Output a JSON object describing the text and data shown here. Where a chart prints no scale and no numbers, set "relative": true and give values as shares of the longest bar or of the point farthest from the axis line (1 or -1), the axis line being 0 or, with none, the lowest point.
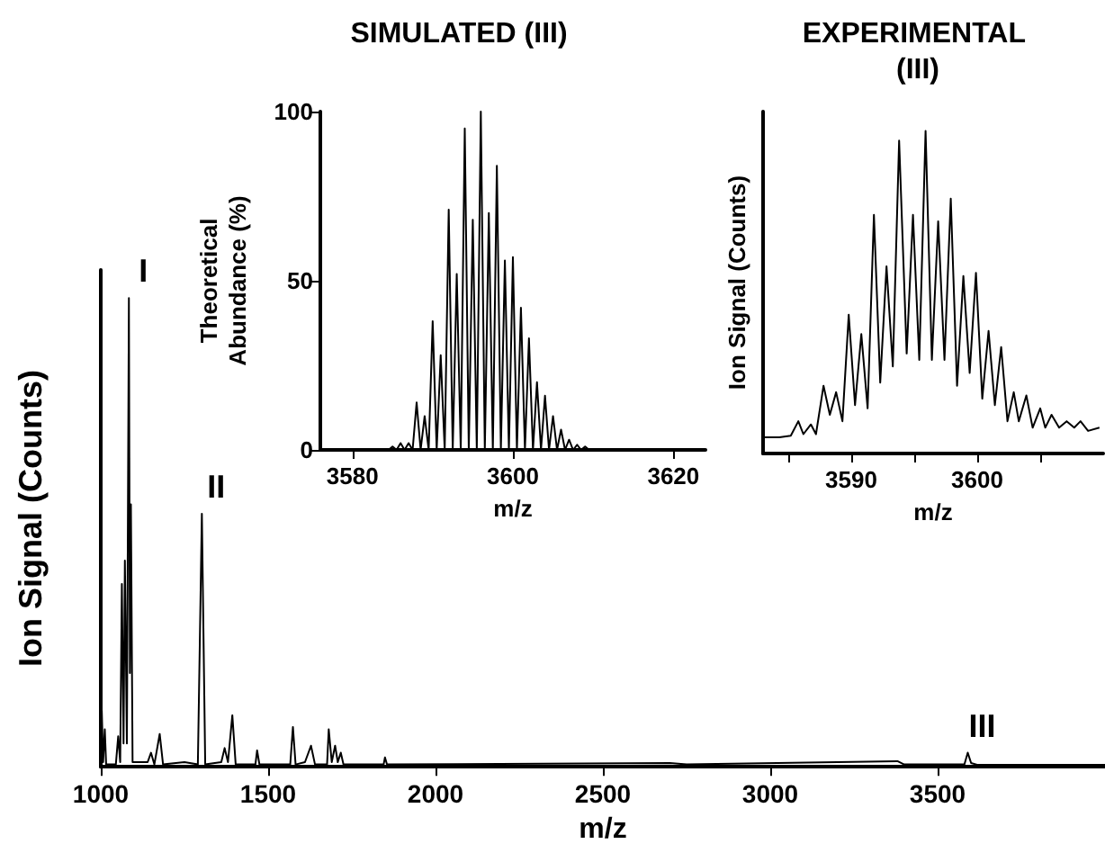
{
  "chart_data": [
    {
      "type": "line",
      "relative": true,
      "xlabel": "m/z",
      "ylabel": "Ion Signal (Counts)",
      "color": "#000000",
      "xlim": [
        1000,
        4000
      ],
      "xticks": [
        1000,
        1500,
        2000,
        2500,
        3000,
        3500
      ],
      "x": [
        1000,
        1003,
        1007,
        1012,
        1016,
        1045,
        1052,
        1058,
        1063,
        1068,
        1072,
        1078,
        1084,
        1087,
        1090,
        1095,
        1140,
        1150,
        1160,
        1176,
        1186,
        1250,
        1290,
        1302,
        1312,
        1360,
        1370,
        1380,
        1393,
        1403,
        1462,
        1467,
        1474,
        1566,
        1574,
        1582,
        1610,
        1628,
        1640,
        1676,
        1681,
        1690,
        1700,
        1708,
        1717,
        1725,
        1845,
        1849,
        1855,
        2700,
        2750,
        3380,
        3400,
        3580,
        3590,
        3600,
        3620,
        4000
      ],
      "values": [
        0.02,
        0.12,
        0.01,
        0.08,
        0.005,
        0.005,
        0.065,
        0.01,
        0.39,
        0.05,
        0.44,
        0.05,
        1.0,
        0.2,
        0.56,
        0.01,
        0.01,
        0.03,
        0.005,
        0.07,
        0.005,
        0.01,
        0.005,
        0.54,
        0.005,
        0.01,
        0.04,
        0.01,
        0.11,
        0.005,
        0.005,
        0.035,
        0.005,
        0.005,
        0.085,
        0.005,
        0.01,
        0.045,
        0.005,
        0.005,
        0.08,
        0.01,
        0.045,
        0.01,
        0.03,
        0.005,
        0.005,
        0.02,
        0.005,
        0.008,
        0.005,
        0.012,
        0.005,
        0.005,
        0.03,
        0.008,
        0.004,
        0.004
      ],
      "annotations": [
        {
          "text": "I",
          "x": 1084,
          "y": 1.0
        },
        {
          "text": "II",
          "x": 1302,
          "y": 0.54
        },
        {
          "text": "III",
          "x": 3590,
          "y": 0.03
        }
      ]
    },
    {
      "type": "line",
      "title": "SIMULATED (III)",
      "xlabel": "m/z",
      "ylabel": "Theoretical\nAbundance (%)",
      "color": "#000000",
      "xlim": [
        3576,
        3624
      ],
      "xticks": [
        3580,
        3600,
        3620
      ],
      "ylim": [
        0,
        100
      ],
      "yticks": [
        0,
        50,
        100
      ],
      "x": [
        3576,
        3584.5,
        3585,
        3585.5,
        3586,
        3586.5,
        3587,
        3587.5,
        3588,
        3588.5,
        3589,
        3589.5,
        3590,
        3590.5,
        3591,
        3591.5,
        3592,
        3592.5,
        3593,
        3593.5,
        3594,
        3594.5,
        3595,
        3595.5,
        3596,
        3596.5,
        3597,
        3597.5,
        3598,
        3598.5,
        3599,
        3599.5,
        3600,
        3600.5,
        3601,
        3601.5,
        3602,
        3602.5,
        3603,
        3603.5,
        3604,
        3604.5,
        3605,
        3605.5,
        3606,
        3606.5,
        3607,
        3607.5,
        3608,
        3608.5,
        3609,
        3609.5,
        3624
      ],
      "values": [
        0,
        0,
        1,
        0,
        2,
        0,
        2,
        0,
        14,
        0,
        10,
        0,
        38,
        0,
        28,
        0,
        71,
        0,
        52,
        0,
        95,
        0,
        68,
        0,
        100,
        0,
        70,
        0,
        84,
        0,
        56,
        0,
        57,
        0,
        42,
        0,
        33,
        0,
        20,
        0,
        16,
        0,
        10,
        0,
        6,
        0,
        3,
        0,
        1.5,
        0,
        1,
        0,
        0
      ]
    },
    {
      "type": "line",
      "relative": true,
      "title": "EXPERIMENTAL (III)",
      "xlabel": "m/z",
      "ylabel": "Ion Signal (Counts)",
      "color": "#000000",
      "xlim": [
        3583,
        3610
      ],
      "xticks": [
        {
          "value": 3585,
          "label": null
        },
        3590,
        {
          "value": 3595,
          "label": null
        },
        3600,
        {
          "value": 3605,
          "label": null
        }
      ],
      "x": [
        3583.1,
        3584.3,
        3585.2,
        3585.8,
        3586.2,
        3586.8,
        3587.2,
        3587.8,
        3588.3,
        3588.8,
        3589.3,
        3589.8,
        3590.3,
        3590.8,
        3591.3,
        3591.8,
        3592.3,
        3592.8,
        3593.3,
        3593.8,
        3594.4,
        3594.9,
        3595.4,
        3595.9,
        3596.4,
        3596.9,
        3597.4,
        3597.9,
        3598.4,
        3598.9,
        3599.4,
        3599.9,
        3600.4,
        3600.9,
        3601.4,
        3601.9,
        3602.4,
        3602.9,
        3603.3,
        3603.9,
        3604.4,
        3605.0,
        3605.4,
        3605.9,
        3606.5,
        3607.1,
        3607.7,
        3608.2,
        3608.8,
        3609.7
      ],
      "values": [
        0.05,
        0.05,
        0.055,
        0.1,
        0.06,
        0.09,
        0.06,
        0.21,
        0.12,
        0.19,
        0.1,
        0.43,
        0.15,
        0.37,
        0.14,
        0.74,
        0.22,
        0.58,
        0.27,
        0.97,
        0.31,
        0.74,
        0.29,
        1.0,
        0.29,
        0.72,
        0.29,
        0.79,
        0.21,
        0.55,
        0.25,
        0.56,
        0.17,
        0.38,
        0.15,
        0.33,
        0.1,
        0.19,
        0.1,
        0.18,
        0.08,
        0.14,
        0.08,
        0.12,
        0.08,
        0.1,
        0.08,
        0.1,
        0.07,
        0.08
      ]
    }
  ]
}
